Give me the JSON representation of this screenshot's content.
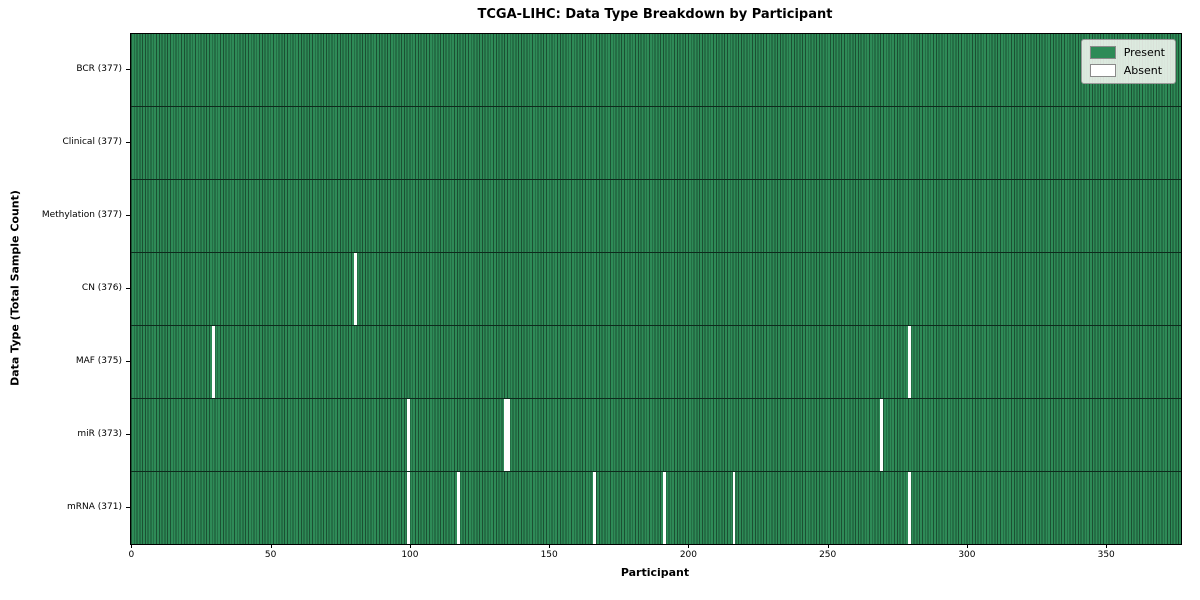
{
  "chart_data": {
    "type": "heatmap",
    "title": "TCGA-LIHC: Data Type Breakdown by Participant",
    "xlabel": "Participant",
    "ylabel": "Data Type (Total Sample Count)",
    "x_span": 377,
    "x_ticks": [
      0,
      50,
      100,
      150,
      200,
      250,
      300,
      350
    ],
    "legend_position": "upper right",
    "grid": false,
    "legend": [
      {
        "label": "Present",
        "color": "#2e8b57"
      },
      {
        "label": "Absent",
        "color": "#ffffff"
      }
    ],
    "colors": {
      "present": "#2e8b57",
      "present_edge": "#1b5133",
      "row_divider": "#0d2b1c",
      "absent": "#ffffff"
    },
    "rows": [
      {
        "name": "bcr",
        "label": "BCR (377)",
        "total": 377,
        "absent": []
      },
      {
        "name": "clinical",
        "label": "Clinical (377)",
        "total": 377,
        "absent": []
      },
      {
        "name": "methylation",
        "label": "Methylation (377)",
        "total": 377,
        "absent": []
      },
      {
        "name": "cn",
        "label": "CN (376)",
        "total": 376,
        "absent": [
          80
        ]
      },
      {
        "name": "maf",
        "label": "MAF (375)",
        "total": 375,
        "absent": [
          29,
          279
        ]
      },
      {
        "name": "mir",
        "label": "miR (373)",
        "total": 373,
        "absent": [
          99,
          134,
          135,
          269
        ]
      },
      {
        "name": "mrna",
        "label": "mRNA (371)",
        "total": 371,
        "absent": [
          99,
          117,
          166,
          191,
          216,
          279
        ]
      }
    ]
  }
}
